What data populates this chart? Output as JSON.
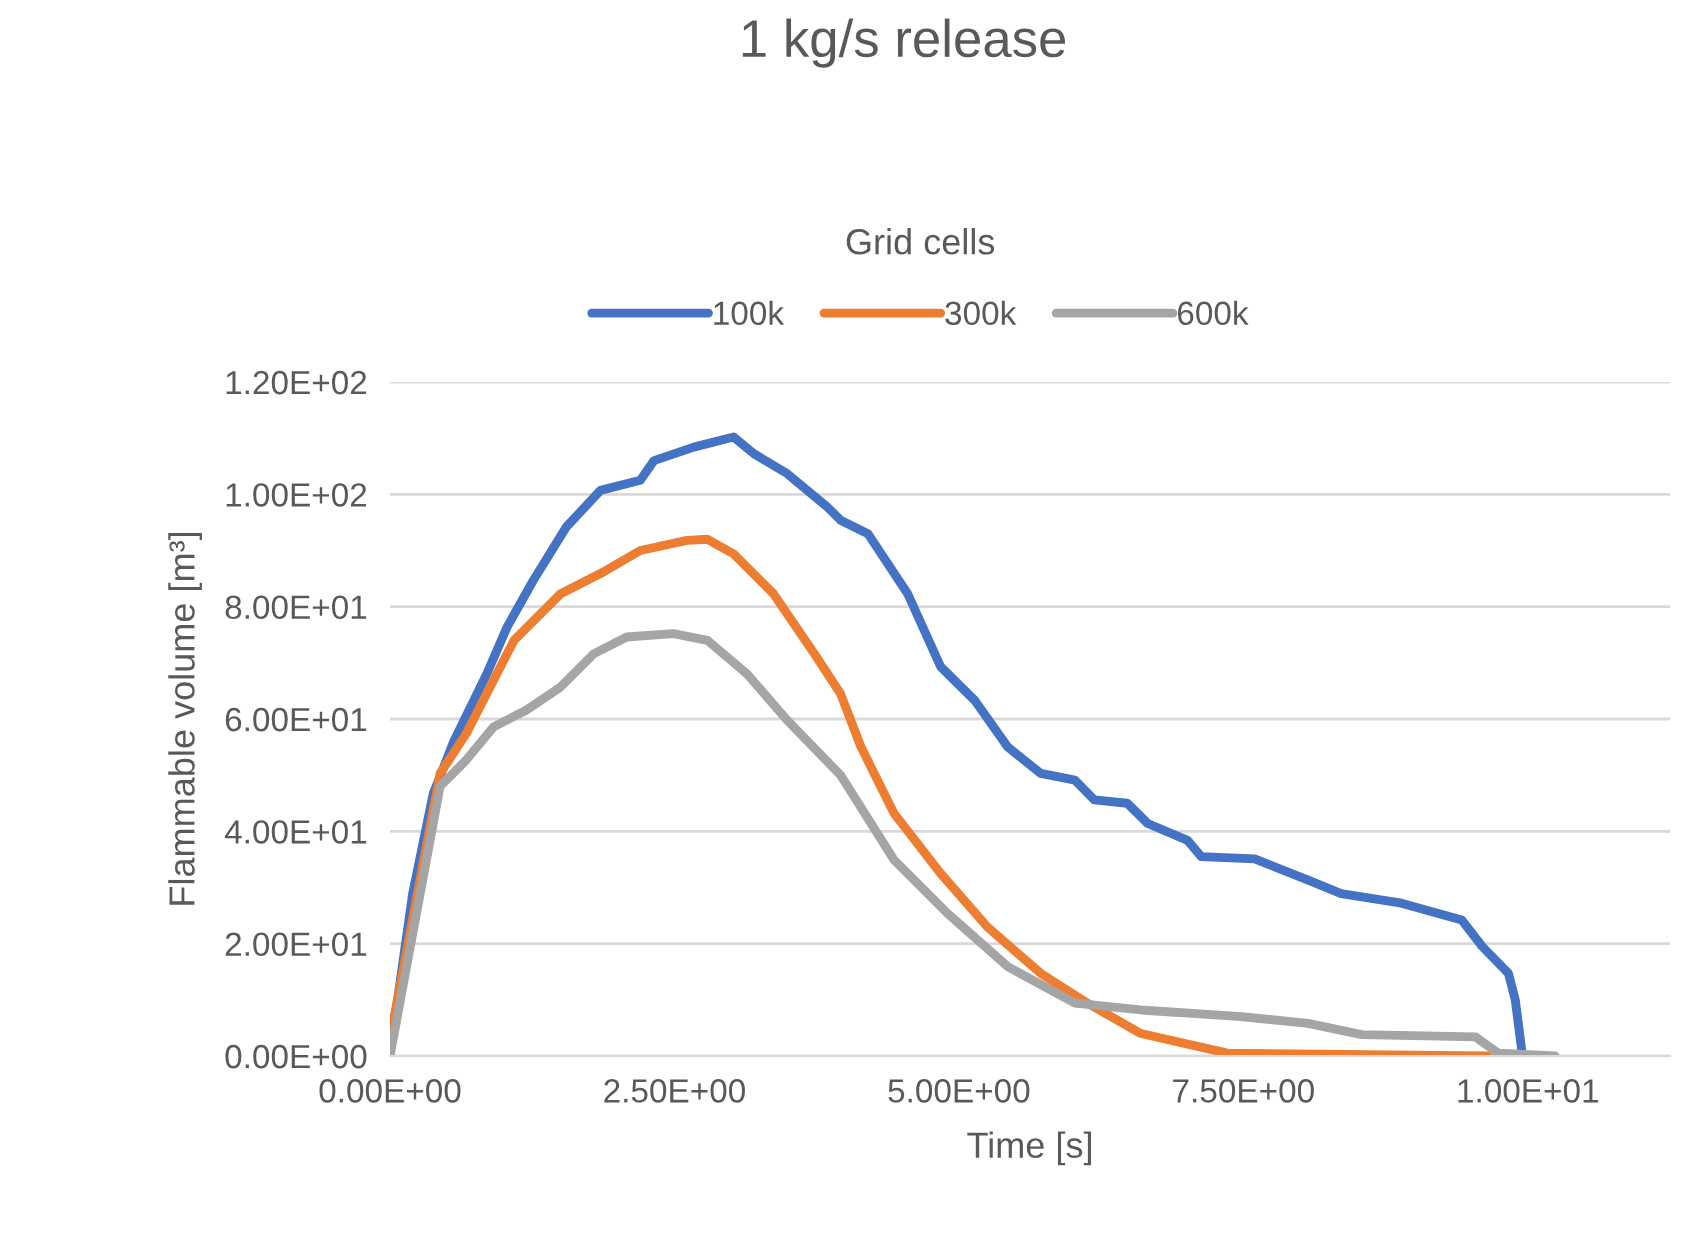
{
  "chart_data": {
    "type": "line",
    "title": "1 kg/s release",
    "xlabel": "Time [s]",
    "ylabel": "Flammable volume [m³]",
    "legend_title": "Grid cells",
    "xlim": [
      0,
      11.25
    ],
    "xticks": [
      {
        "value": 0,
        "label": "0.00E+00"
      },
      {
        "value": 2.5,
        "label": "2.50E+00"
      },
      {
        "value": 5,
        "label": "5.00E+00"
      },
      {
        "value": 7.5,
        "label": "7.50E+00"
      },
      {
        "value": 10,
        "label": "1.00E+01"
      }
    ],
    "ylim": [
      0,
      120
    ],
    "yticks": [
      {
        "value": 0,
        "label": "0.00E+00"
      },
      {
        "value": 20,
        "label": "2.00E+01"
      },
      {
        "value": 40,
        "label": "4.00E+01"
      },
      {
        "value": 60,
        "label": "6.00E+01"
      },
      {
        "value": 80,
        "label": "8.00E+01"
      },
      {
        "value": 100,
        "label": "1.00E+02"
      },
      {
        "value": 120,
        "label": "1.20E+02"
      }
    ],
    "grid": "y",
    "legend": "top",
    "marker": "none",
    "line_style": "solid",
    "series": [
      {
        "name": "100k",
        "color": "#4472c4",
        "x": [
          0,
          0.2,
          0.38,
          0.56,
          0.85,
          1.03,
          1.26,
          1.55,
          1.85,
          2.2,
          2.32,
          2.67,
          3.02,
          3.2,
          3.49,
          3.84,
          3.96,
          4.2,
          4.55,
          4.84,
          5.14,
          5.43,
          5.72,
          6.02,
          6.19,
          6.48,
          6.66,
          7.01,
          7.13,
          7.6,
          8.07,
          8.36,
          8.89,
          9.42,
          9.6,
          9.83,
          9.89,
          9.95
        ],
        "values": [
          0.5,
          29,
          46.7,
          56,
          68,
          76.4,
          84.7,
          94.2,
          100.7,
          102.5,
          106,
          108.4,
          110.2,
          107.2,
          103.7,
          97.8,
          95.4,
          93,
          82.3,
          69.3,
          63.3,
          55,
          50.3,
          49.1,
          45.6,
          45,
          41.4,
          38.4,
          35.5,
          35.1,
          31.3,
          28.9,
          27.2,
          24.2,
          19.5,
          14.7,
          10,
          0.5
        ]
      },
      {
        "name": "300k",
        "color": "#ed7d31",
        "x": [
          0,
          0.44,
          0.67,
          0.91,
          1.09,
          1.5,
          1.85,
          2.2,
          2.61,
          2.79,
          3.02,
          3.37,
          3.73,
          3.96,
          4.14,
          4.43,
          4.84,
          5.25,
          5.72,
          6.13,
          6.6,
          7.36,
          9.65
        ],
        "values": [
          3,
          50.3,
          57.4,
          66.9,
          74,
          82.3,
          85.9,
          90,
          91.8,
          92,
          89.4,
          82.3,
          71.6,
          64.5,
          55,
          43.2,
          32.5,
          23,
          14.7,
          9.4,
          4,
          0.5,
          0
        ]
      },
      {
        "name": "600k",
        "color": "#a5a5a5",
        "x": [
          0,
          0.44,
          0.67,
          0.91,
          1.2,
          1.5,
          1.79,
          2.08,
          2.49,
          2.79,
          3.14,
          3.49,
          3.96,
          4.43,
          4.9,
          5.43,
          6.02,
          6.6,
          7.48,
          8.07,
          8.54,
          9.54,
          9.74,
          10.24
        ],
        "values": [
          0,
          48,
          52.7,
          58.6,
          61.6,
          65.7,
          71.6,
          74.6,
          75.2,
          74,
          68,
          59.8,
          50,
          34.9,
          25.4,
          15.9,
          9.4,
          8.2,
          7,
          5.8,
          3.8,
          3.4,
          0.5,
          0
        ]
      }
    ]
  }
}
